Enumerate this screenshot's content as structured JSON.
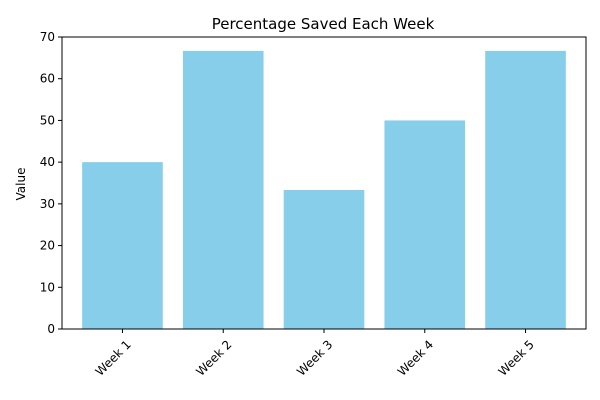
{
  "chart_data": {
    "type": "bar",
    "title": "Percentage Saved Each Week",
    "xlabel": "",
    "ylabel": "Value",
    "categories": [
      "Week 1",
      "Week 2",
      "Week 3",
      "Week 4",
      "Week 5"
    ],
    "values": [
      40,
      66.67,
      33.33,
      50,
      66.67
    ],
    "ylim": [
      0,
      70
    ],
    "yticks": [
      0,
      10,
      20,
      30,
      40,
      50,
      60,
      70
    ],
    "bar_color": "#87CEEB",
    "grid": false,
    "xtick_rotation_deg": 45
  }
}
